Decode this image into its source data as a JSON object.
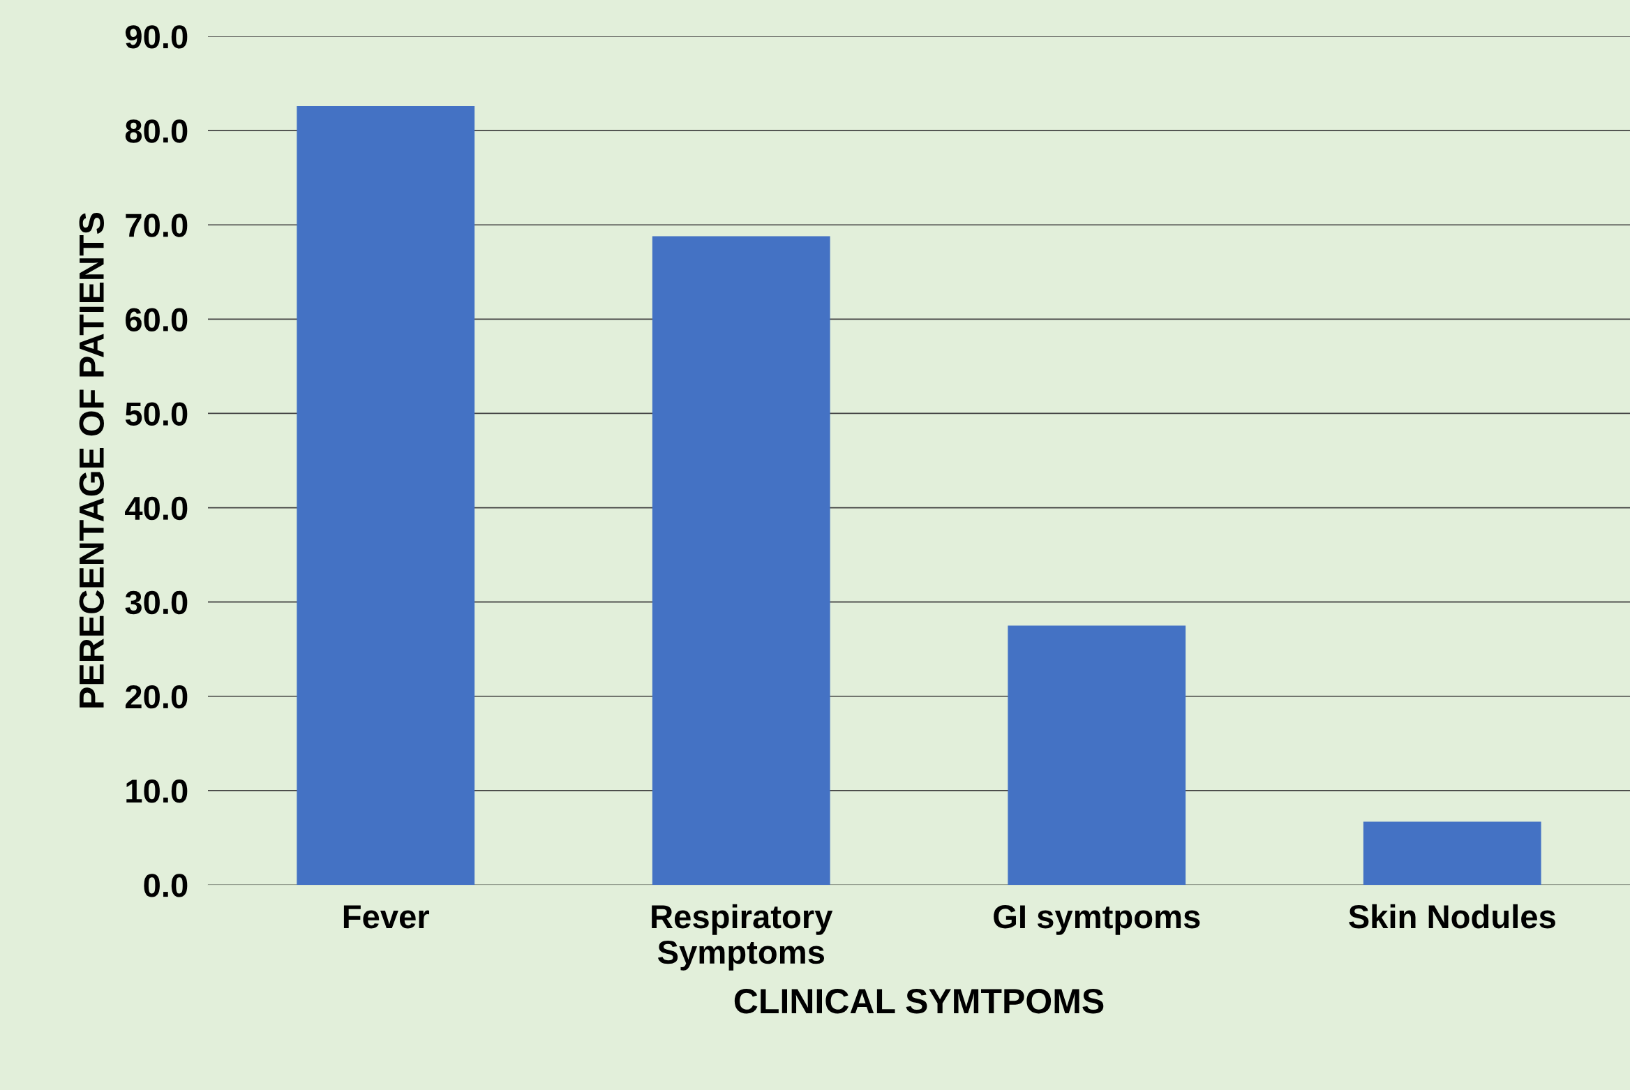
{
  "chart_data": {
    "type": "bar",
    "xlabel": "CLINICAL SYMTPOMS",
    "ylabel": "PERECENTAGE OF PATIENTS",
    "categories": [
      "Fever",
      "Respiratory\nSymptoms",
      "GI symtpoms",
      "Skin Nodules"
    ],
    "values": [
      82.6,
      68.8,
      27.5,
      6.7
    ],
    "color": "#4472c4",
    "ylim": [
      0,
      90
    ],
    "yticks": [
      {
        "value": 0,
        "label": "0.0"
      },
      {
        "value": 10,
        "label": "10.0"
      },
      {
        "value": 20,
        "label": "20.0"
      },
      {
        "value": 30,
        "label": "30.0"
      },
      {
        "value": 40,
        "label": "40.0"
      },
      {
        "value": 50,
        "label": "50.0"
      },
      {
        "value": 60,
        "label": "60.0"
      },
      {
        "value": 70,
        "label": "70.0"
      },
      {
        "value": 80,
        "label": "80.0"
      },
      {
        "value": 90,
        "label": "90.0"
      }
    ],
    "grid": "y"
  }
}
